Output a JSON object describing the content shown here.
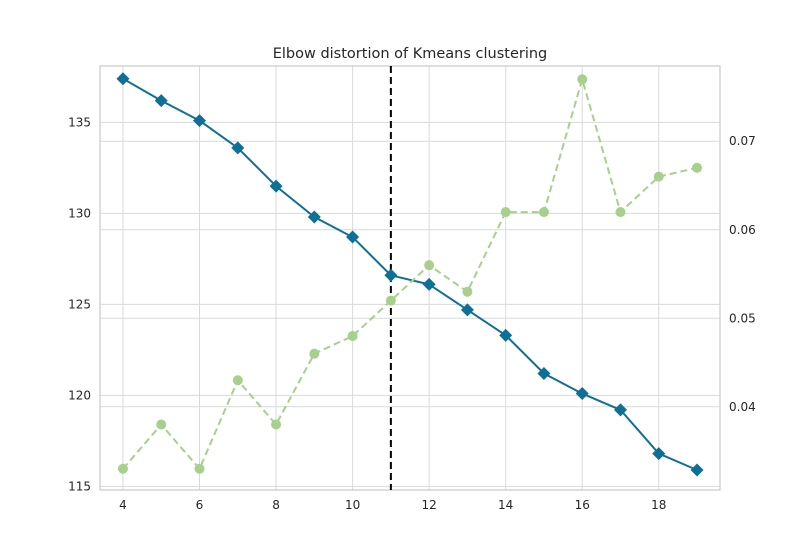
{
  "chart_data": {
    "type": "line",
    "title": "Elbow distortion of Kmeans clustering",
    "xlabel": "",
    "ylabel": "",
    "y2label": "",
    "x": [
      4,
      5,
      6,
      7,
      8,
      9,
      10,
      11,
      12,
      13,
      14,
      15,
      16,
      17,
      18,
      19
    ],
    "xlim": [
      3.4,
      19.6
    ],
    "ylim": [
      114.8,
      138.1
    ],
    "y2lim": [
      0.0306,
      0.0785
    ],
    "x_ticks": [
      4,
      6,
      8,
      10,
      12,
      14,
      16,
      18
    ],
    "y_ticks": [
      115,
      120,
      125,
      130,
      135
    ],
    "y2_ticks": [
      0.04,
      0.05,
      0.06,
      0.07
    ],
    "y2_tick_labels": [
      "0.04",
      "0.05",
      "0.06",
      "0.07"
    ],
    "grid": true,
    "series": [
      {
        "axis": "left",
        "style": "solid",
        "marker": "diamond",
        "color": "#0e6f97",
        "values": [
          137.4,
          136.2,
          135.1,
          133.6,
          131.5,
          129.8,
          128.7,
          126.6,
          126.1,
          124.7,
          123.3,
          121.2,
          120.1,
          119.2,
          116.8,
          115.9
        ]
      },
      {
        "axis": "right",
        "style": "dashed",
        "marker": "circle",
        "color": "#a8d08d",
        "values": [
          0.033,
          0.038,
          0.033,
          0.043,
          0.038,
          0.046,
          0.048,
          0.052,
          0.056,
          0.053,
          0.062,
          0.062,
          0.077,
          0.062,
          0.066,
          0.067
        ]
      }
    ],
    "vline": {
      "x": 11,
      "style": "dashed",
      "color": "#000000"
    },
    "colors": {
      "grid": "#d9d9d9",
      "frame": "#cccccc",
      "text": "#262626"
    }
  }
}
